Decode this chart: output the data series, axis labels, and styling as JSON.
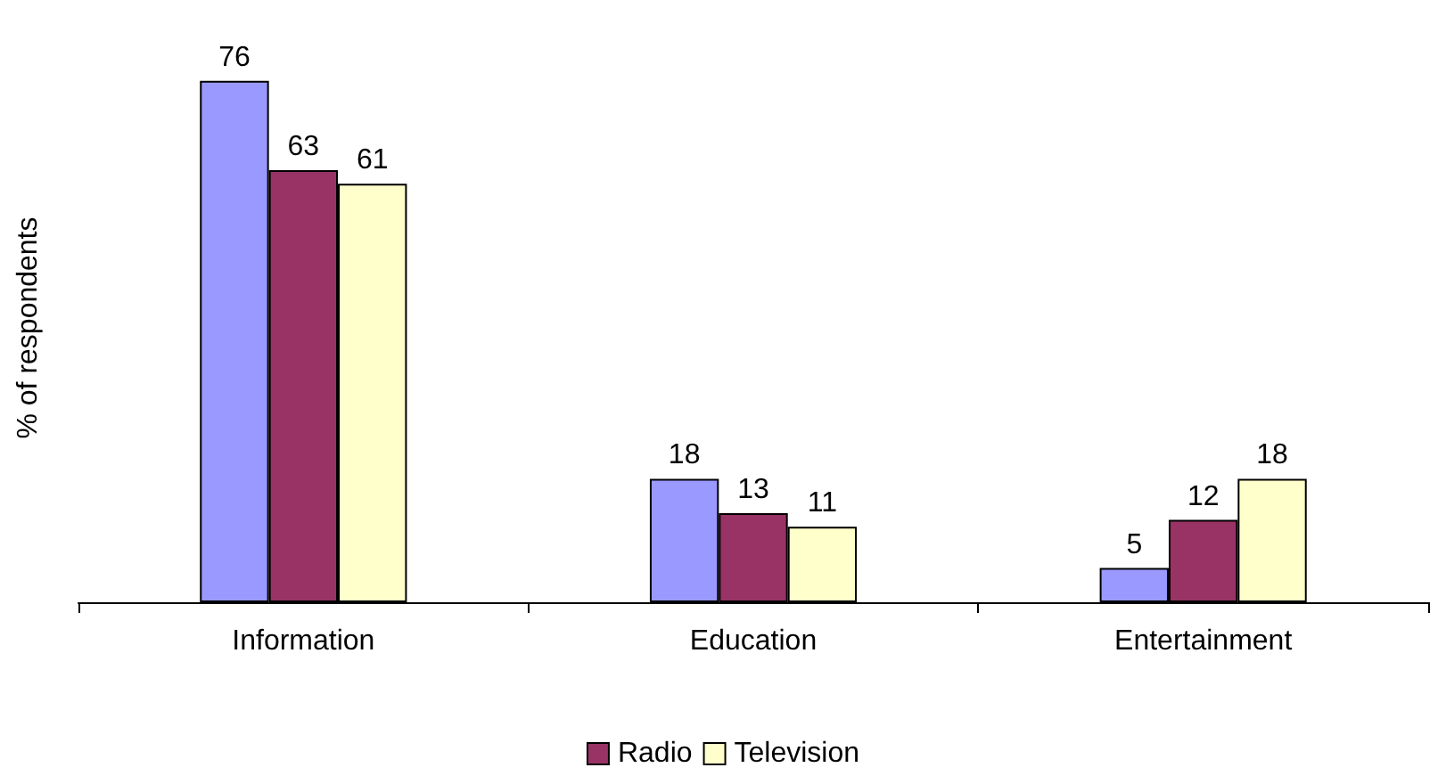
{
  "chart_data": {
    "type": "bar",
    "ylabel": "% of respondents",
    "categories": [
      "Information",
      "Education",
      "Entertainment"
    ],
    "series": [
      {
        "color": "#9999ff",
        "values": [
          76,
          18,
          5
        ]
      },
      {
        "name": "Radio",
        "color": "#993366",
        "values": [
          63,
          13,
          12
        ]
      },
      {
        "name": "Television",
        "color": "#ffffcc",
        "values": [
          61,
          11,
          18
        ]
      }
    ],
    "data_labels": true,
    "grid": false,
    "legend": "bottom"
  }
}
